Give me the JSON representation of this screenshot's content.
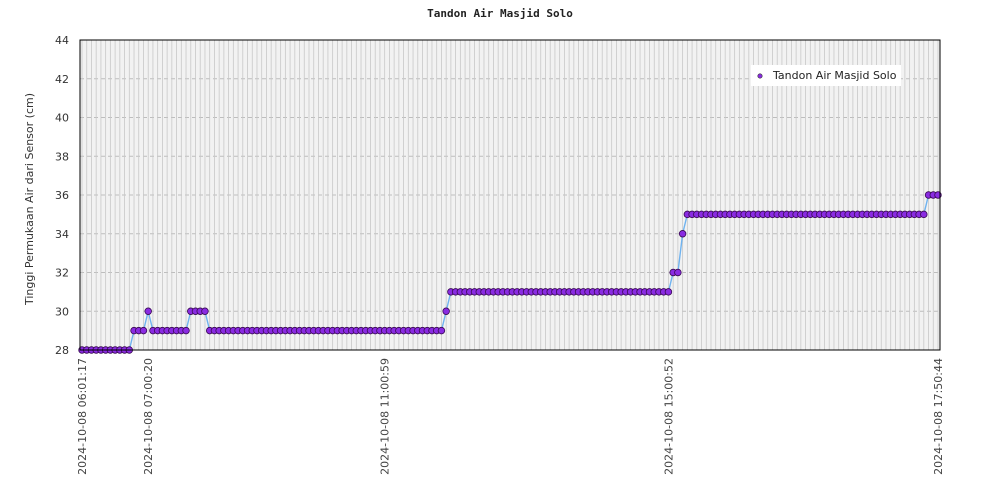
{
  "chart_data": {
    "type": "line",
    "title": "Tandon Air Masjid Solo",
    "xlabel": "",
    "ylabel": "Tinggi Permukaan Air dari Sensor (cm)",
    "ylim": [
      28,
      44
    ],
    "yticks": [
      28,
      30,
      32,
      34,
      36,
      38,
      40,
      42,
      44
    ],
    "grid": true,
    "legend_position": "top-right",
    "x_first_label": "2024-10-08 06:01:17",
    "x_last_label": "2024-10-08 17:50:44",
    "x_tick_partial": [
      "2024-10-08 07:00:20",
      "2024-10-08 11:00:59",
      "2024-10-08 15:00:52"
    ],
    "series": [
      {
        "name": "Tandon Air Masjid Solo",
        "color": "#8a2be2",
        "line_color": "#6fb3f0",
        "values": [
          28,
          28,
          28,
          28,
          28,
          28,
          28,
          28,
          28,
          28,
          28,
          29,
          29,
          29,
          30,
          29,
          29,
          29,
          29,
          29,
          29,
          29,
          29,
          30,
          30,
          30,
          30,
          29,
          29,
          29,
          29,
          29,
          29,
          29,
          29,
          29,
          29,
          29,
          29,
          29,
          29,
          29,
          29,
          29,
          29,
          29,
          29,
          29,
          29,
          29,
          29,
          29,
          29,
          29,
          29,
          29,
          29,
          29,
          29,
          29,
          29,
          29,
          29,
          29,
          29,
          29,
          29,
          29,
          29,
          29,
          29,
          29,
          29,
          29,
          29,
          29,
          29,
          30,
          31,
          31,
          31,
          31,
          31,
          31,
          31,
          31,
          31,
          31,
          31,
          31,
          31,
          31,
          31,
          31,
          31,
          31,
          31,
          31,
          31,
          31,
          31,
          31,
          31,
          31,
          31,
          31,
          31,
          31,
          31,
          31,
          31,
          31,
          31,
          31,
          31,
          31,
          31,
          31,
          31,
          31,
          31,
          31,
          31,
          31,
          31,
          32,
          32,
          34,
          35,
          35,
          35,
          35,
          35,
          35,
          35,
          35,
          35,
          35,
          35,
          35,
          35,
          35,
          35,
          35,
          35,
          35,
          35,
          35,
          35,
          35,
          35,
          35,
          35,
          35,
          35,
          35,
          35,
          35,
          35,
          35,
          35,
          35,
          35,
          35,
          35,
          35,
          35,
          35,
          35,
          35,
          35,
          35,
          35,
          35,
          35,
          35,
          35,
          35,
          35,
          36,
          36,
          36
        ]
      }
    ]
  }
}
